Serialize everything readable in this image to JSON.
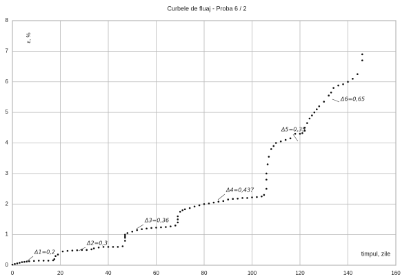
{
  "chart_data": {
    "type": "scatter",
    "title": "Curbele de fluaj - Proba 6 / 2",
    "x_label": "timpul, zile",
    "y_label": "ε, %",
    "xlim": [
      0,
      160
    ],
    "xticks": [
      0,
      20,
      40,
      60,
      80,
      100,
      120,
      140,
      160
    ],
    "ylim": [
      0,
      8
    ],
    "yticks": [
      0,
      1,
      2,
      3,
      4,
      5,
      6,
      7,
      8
    ],
    "grid": true,
    "series": [
      {
        "color": "#111111",
        "x": [
          0,
          1,
          2,
          3,
          4,
          5,
          6,
          7,
          9,
          11,
          13,
          15,
          17,
          17.5,
          18,
          19,
          21,
          23,
          25,
          27,
          29,
          31,
          33,
          34,
          36,
          38,
          40,
          42,
          44,
          46,
          47,
          47,
          47,
          47,
          48,
          50,
          52,
          54,
          56,
          58,
          60,
          62,
          64,
          66,
          68,
          69,
          69,
          69,
          70,
          71,
          72,
          74,
          76,
          78,
          80,
          82,
          84,
          86,
          88,
          90,
          92,
          94,
          96,
          98,
          100,
          102,
          104,
          105,
          106,
          106,
          106,
          106.5,
          107,
          108,
          109,
          110,
          112,
          114,
          116,
          118,
          120,
          121,
          122,
          122,
          123,
          124,
          125,
          126,
          127,
          128,
          130,
          132,
          133,
          134,
          136,
          138,
          140,
          142,
          144,
          146,
          146
        ],
        "values": [
          0.02,
          0.04,
          0.06,
          0.08,
          0.1,
          0.11,
          0.12,
          0.13,
          0.14,
          0.15,
          0.15,
          0.15,
          0.16,
          0.2,
          0.3,
          0.35,
          0.45,
          0.47,
          0.48,
          0.49,
          0.5,
          0.5,
          0.52,
          0.55,
          0.58,
          0.6,
          0.6,
          0.6,
          0.6,
          0.62,
          0.8,
          0.9,
          0.95,
          1.0,
          1.05,
          1.1,
          1.15,
          1.18,
          1.2,
          1.22,
          1.23,
          1.24,
          1.25,
          1.27,
          1.3,
          1.4,
          1.5,
          1.6,
          1.75,
          1.8,
          1.83,
          1.87,
          1.92,
          1.96,
          2.0,
          2.02,
          2.05,
          2.08,
          2.1,
          2.15,
          2.17,
          2.18,
          2.2,
          2.2,
          2.22,
          2.23,
          2.25,
          2.3,
          2.5,
          2.8,
          3.0,
          3.3,
          3.55,
          3.8,
          3.9,
          4.0,
          4.05,
          4.1,
          4.15,
          4.3,
          4.3,
          4.32,
          4.4,
          4.5,
          4.65,
          4.8,
          4.9,
          5.0,
          5.1,
          5.2,
          5.35,
          5.55,
          5.65,
          5.8,
          5.88,
          5.92,
          6.0,
          6.1,
          6.25,
          6.7,
          6.9
        ]
      }
    ],
    "annotations": [
      "Δ1=0,2",
      "Δ2=0,3",
      "Δ3=0,36",
      "Δ4=0,437",
      "Δ5=0,35",
      "Δ6=0,65"
    ]
  }
}
